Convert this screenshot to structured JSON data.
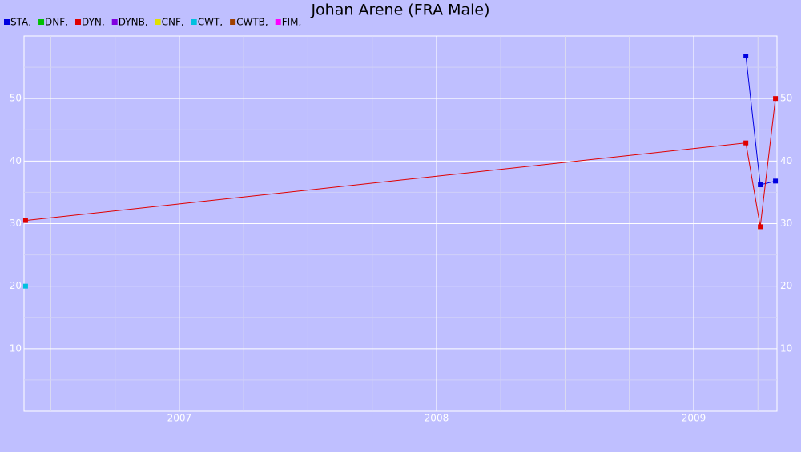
{
  "chart_data": {
    "type": "line",
    "title": "Johan Arene (FRA Male)",
    "xlim": [
      2006.396,
      2009.324
    ],
    "xticks": [
      2007,
      2008,
      2009
    ],
    "xminor_ticks": [
      2006.5,
      2006.75,
      2007.25,
      2007.5,
      2007.75,
      2008.25,
      2008.5,
      2008.75,
      2009.25
    ],
    "ylim": [
      0,
      60
    ],
    "yticks": [
      10,
      20,
      30,
      40,
      50
    ],
    "yminor_ticks": [
      5,
      15,
      25,
      35,
      45,
      55
    ],
    "grid": true,
    "series": [
      {
        "name": "STA,",
        "color": "#0000e0",
        "x": [
          2009.203,
          2009.259,
          2009.318
        ],
        "values": [
          56.8,
          36.2,
          36.8
        ]
      },
      {
        "name": "DNF,",
        "color": "#00c000",
        "x": [],
        "values": []
      },
      {
        "name": "DYN,",
        "color": "#e00000",
        "x": [
          2006.402,
          2009.203,
          2009.259,
          2009.318
        ],
        "values": [
          30.5,
          42.9,
          29.5,
          50.0
        ]
      },
      {
        "name": "DYNB,",
        "color": "#8000e0",
        "x": [],
        "values": []
      },
      {
        "name": "CNF,",
        "color": "#e0e000",
        "x": [],
        "values": []
      },
      {
        "name": "CWT,",
        "color": "#00c0e0",
        "x": [
          2006.402
        ],
        "values": [
          20.0
        ]
      },
      {
        "name": "CWTB,",
        "color": "#a04000",
        "x": [],
        "values": []
      },
      {
        "name": "FIM,",
        "color": "#ff00ff",
        "x": [],
        "values": []
      }
    ]
  }
}
